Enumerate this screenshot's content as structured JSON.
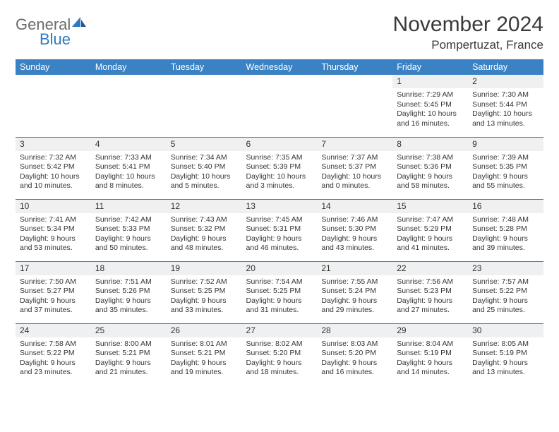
{
  "brand": {
    "general": "General",
    "blue": "Blue"
  },
  "title": "November 2024",
  "location": "Pompertuzat, France",
  "colors": {
    "header_bg": "#3b82c4",
    "header_fg": "#ffffff",
    "daynum_bg": "#eef0f2",
    "rule": "#3b82c4"
  },
  "weekdays": [
    "Sunday",
    "Monday",
    "Tuesday",
    "Wednesday",
    "Thursday",
    "Friday",
    "Saturday"
  ],
  "weeks": [
    [
      null,
      null,
      null,
      null,
      null,
      {
        "n": "1",
        "sunrise": "Sunrise: 7:29 AM",
        "sunset": "Sunset: 5:45 PM",
        "day1": "Daylight: 10 hours",
        "day2": "and 16 minutes."
      },
      {
        "n": "2",
        "sunrise": "Sunrise: 7:30 AM",
        "sunset": "Sunset: 5:44 PM",
        "day1": "Daylight: 10 hours",
        "day2": "and 13 minutes."
      }
    ],
    [
      {
        "n": "3",
        "sunrise": "Sunrise: 7:32 AM",
        "sunset": "Sunset: 5:42 PM",
        "day1": "Daylight: 10 hours",
        "day2": "and 10 minutes."
      },
      {
        "n": "4",
        "sunrise": "Sunrise: 7:33 AM",
        "sunset": "Sunset: 5:41 PM",
        "day1": "Daylight: 10 hours",
        "day2": "and 8 minutes."
      },
      {
        "n": "5",
        "sunrise": "Sunrise: 7:34 AM",
        "sunset": "Sunset: 5:40 PM",
        "day1": "Daylight: 10 hours",
        "day2": "and 5 minutes."
      },
      {
        "n": "6",
        "sunrise": "Sunrise: 7:35 AM",
        "sunset": "Sunset: 5:39 PM",
        "day1": "Daylight: 10 hours",
        "day2": "and 3 minutes."
      },
      {
        "n": "7",
        "sunrise": "Sunrise: 7:37 AM",
        "sunset": "Sunset: 5:37 PM",
        "day1": "Daylight: 10 hours",
        "day2": "and 0 minutes."
      },
      {
        "n": "8",
        "sunrise": "Sunrise: 7:38 AM",
        "sunset": "Sunset: 5:36 PM",
        "day1": "Daylight: 9 hours",
        "day2": "and 58 minutes."
      },
      {
        "n": "9",
        "sunrise": "Sunrise: 7:39 AM",
        "sunset": "Sunset: 5:35 PM",
        "day1": "Daylight: 9 hours",
        "day2": "and 55 minutes."
      }
    ],
    [
      {
        "n": "10",
        "sunrise": "Sunrise: 7:41 AM",
        "sunset": "Sunset: 5:34 PM",
        "day1": "Daylight: 9 hours",
        "day2": "and 53 minutes."
      },
      {
        "n": "11",
        "sunrise": "Sunrise: 7:42 AM",
        "sunset": "Sunset: 5:33 PM",
        "day1": "Daylight: 9 hours",
        "day2": "and 50 minutes."
      },
      {
        "n": "12",
        "sunrise": "Sunrise: 7:43 AM",
        "sunset": "Sunset: 5:32 PM",
        "day1": "Daylight: 9 hours",
        "day2": "and 48 minutes."
      },
      {
        "n": "13",
        "sunrise": "Sunrise: 7:45 AM",
        "sunset": "Sunset: 5:31 PM",
        "day1": "Daylight: 9 hours",
        "day2": "and 46 minutes."
      },
      {
        "n": "14",
        "sunrise": "Sunrise: 7:46 AM",
        "sunset": "Sunset: 5:30 PM",
        "day1": "Daylight: 9 hours",
        "day2": "and 43 minutes."
      },
      {
        "n": "15",
        "sunrise": "Sunrise: 7:47 AM",
        "sunset": "Sunset: 5:29 PM",
        "day1": "Daylight: 9 hours",
        "day2": "and 41 minutes."
      },
      {
        "n": "16",
        "sunrise": "Sunrise: 7:48 AM",
        "sunset": "Sunset: 5:28 PM",
        "day1": "Daylight: 9 hours",
        "day2": "and 39 minutes."
      }
    ],
    [
      {
        "n": "17",
        "sunrise": "Sunrise: 7:50 AM",
        "sunset": "Sunset: 5:27 PM",
        "day1": "Daylight: 9 hours",
        "day2": "and 37 minutes."
      },
      {
        "n": "18",
        "sunrise": "Sunrise: 7:51 AM",
        "sunset": "Sunset: 5:26 PM",
        "day1": "Daylight: 9 hours",
        "day2": "and 35 minutes."
      },
      {
        "n": "19",
        "sunrise": "Sunrise: 7:52 AM",
        "sunset": "Sunset: 5:25 PM",
        "day1": "Daylight: 9 hours",
        "day2": "and 33 minutes."
      },
      {
        "n": "20",
        "sunrise": "Sunrise: 7:54 AM",
        "sunset": "Sunset: 5:25 PM",
        "day1": "Daylight: 9 hours",
        "day2": "and 31 minutes."
      },
      {
        "n": "21",
        "sunrise": "Sunrise: 7:55 AM",
        "sunset": "Sunset: 5:24 PM",
        "day1": "Daylight: 9 hours",
        "day2": "and 29 minutes."
      },
      {
        "n": "22",
        "sunrise": "Sunrise: 7:56 AM",
        "sunset": "Sunset: 5:23 PM",
        "day1": "Daylight: 9 hours",
        "day2": "and 27 minutes."
      },
      {
        "n": "23",
        "sunrise": "Sunrise: 7:57 AM",
        "sunset": "Sunset: 5:22 PM",
        "day1": "Daylight: 9 hours",
        "day2": "and 25 minutes."
      }
    ],
    [
      {
        "n": "24",
        "sunrise": "Sunrise: 7:58 AM",
        "sunset": "Sunset: 5:22 PM",
        "day1": "Daylight: 9 hours",
        "day2": "and 23 minutes."
      },
      {
        "n": "25",
        "sunrise": "Sunrise: 8:00 AM",
        "sunset": "Sunset: 5:21 PM",
        "day1": "Daylight: 9 hours",
        "day2": "and 21 minutes."
      },
      {
        "n": "26",
        "sunrise": "Sunrise: 8:01 AM",
        "sunset": "Sunset: 5:21 PM",
        "day1": "Daylight: 9 hours",
        "day2": "and 19 minutes."
      },
      {
        "n": "27",
        "sunrise": "Sunrise: 8:02 AM",
        "sunset": "Sunset: 5:20 PM",
        "day1": "Daylight: 9 hours",
        "day2": "and 18 minutes."
      },
      {
        "n": "28",
        "sunrise": "Sunrise: 8:03 AM",
        "sunset": "Sunset: 5:20 PM",
        "day1": "Daylight: 9 hours",
        "day2": "and 16 minutes."
      },
      {
        "n": "29",
        "sunrise": "Sunrise: 8:04 AM",
        "sunset": "Sunset: 5:19 PM",
        "day1": "Daylight: 9 hours",
        "day2": "and 14 minutes."
      },
      {
        "n": "30",
        "sunrise": "Sunrise: 8:05 AM",
        "sunset": "Sunset: 5:19 PM",
        "day1": "Daylight: 9 hours",
        "day2": "and 13 minutes."
      }
    ]
  ]
}
